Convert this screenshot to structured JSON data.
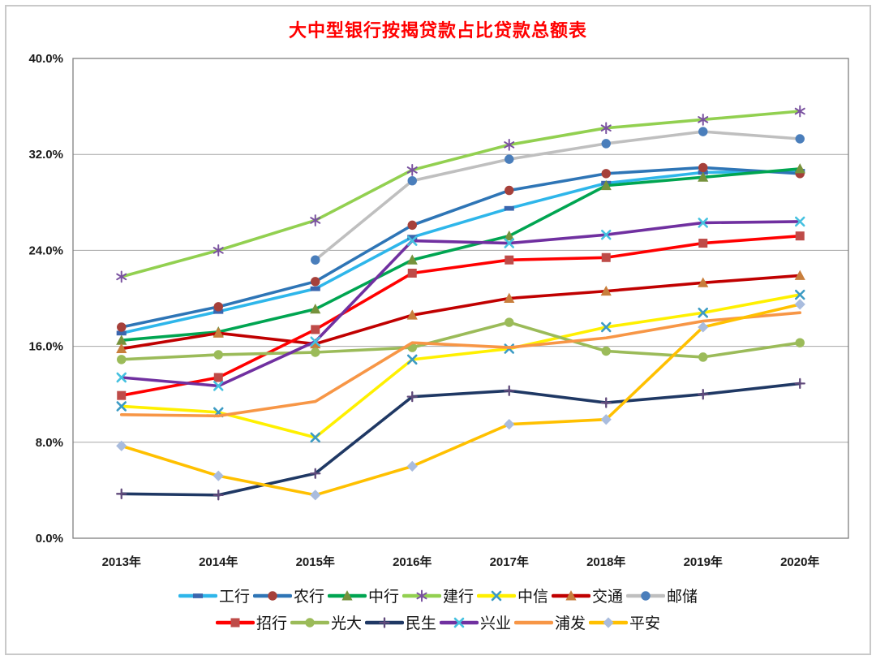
{
  "chart_data": {
    "type": "line",
    "title": "大中型银行按揭贷款占比贷款总额表",
    "title_color": "#ff0000",
    "categories": [
      "2013年",
      "2014年",
      "2015年",
      "2016年",
      "2017年",
      "2018年",
      "2019年",
      "2020年"
    ],
    "y_ticks": [
      "0.0%",
      "8.0%",
      "16.0%",
      "24.0%",
      "32.0%",
      "40.0%"
    ],
    "y_tick_values": [
      0,
      8,
      16,
      24,
      32,
      40
    ],
    "ylim": [
      0,
      40
    ],
    "grid": "horizontal",
    "legend_position": "bottom",
    "legend_rows": [
      [
        0,
        1,
        2,
        3,
        4,
        5,
        6
      ],
      [
        7,
        8,
        9,
        10,
        11,
        12
      ]
    ],
    "grid_color": "#a6a6a6",
    "plot_border_color": "#7f7f7f",
    "series": [
      {
        "name": "工行",
        "line_color": "#2eb6ea",
        "marker": "dash",
        "marker_color": "#3a66ae",
        "values": [
          17.1,
          18.9,
          20.8,
          25.1,
          27.5,
          29.6,
          30.5,
          30.6
        ]
      },
      {
        "name": "农行",
        "line_color": "#2e75b6",
        "marker": "circle",
        "marker_color": "#a6403a",
        "values": [
          17.6,
          19.3,
          21.4,
          26.1,
          29.0,
          30.4,
          30.9,
          30.4
        ]
      },
      {
        "name": "中行",
        "line_color": "#00a551",
        "marker": "triangle",
        "marker_color": "#76923c",
        "values": [
          16.5,
          17.2,
          19.1,
          23.2,
          25.2,
          29.4,
          30.1,
          30.8
        ]
      },
      {
        "name": "建行",
        "line_color": "#92d050",
        "marker": "asterisk",
        "marker_color": "#7a52a0",
        "values": [
          21.8,
          24.0,
          26.5,
          30.7,
          32.8,
          34.2,
          34.9,
          35.6
        ]
      },
      {
        "name": "中信",
        "line_color": "#fff000",
        "marker": "x",
        "marker_color": "#3c9bc4",
        "values": [
          11.0,
          10.5,
          8.4,
          14.9,
          15.8,
          17.6,
          18.8,
          20.3
        ]
      },
      {
        "name": "交通",
        "line_color": "#c00000",
        "marker": "triangle",
        "marker_color": "#c87e3c",
        "values": [
          15.8,
          17.1,
          16.2,
          18.6,
          20.0,
          20.6,
          21.3,
          21.9
        ]
      },
      {
        "name": "邮储",
        "line_color": "#bfbfbf",
        "marker": "circle",
        "marker_color": "#4a7ebb",
        "values": [
          null,
          null,
          23.2,
          29.8,
          31.6,
          32.9,
          33.9,
          33.3
        ]
      },
      {
        "name": "招行",
        "line_color": "#ff0000",
        "marker": "square",
        "marker_color": "#be4b48",
        "values": [
          11.9,
          13.4,
          17.4,
          22.1,
          23.2,
          23.4,
          24.6,
          25.2
        ]
      },
      {
        "name": "光大",
        "line_color": "#9bbb59",
        "marker": "circle",
        "marker_color": "#9bbb59",
        "values": [
          14.9,
          15.3,
          15.5,
          15.9,
          18.0,
          15.6,
          15.1,
          16.3
        ]
      },
      {
        "name": "民生",
        "line_color": "#1f3864",
        "marker": "plus",
        "marker_color": "#604a7b",
        "values": [
          3.7,
          3.6,
          5.4,
          11.8,
          12.3,
          11.3,
          12.0,
          12.9
        ]
      },
      {
        "name": "兴业",
        "line_color": "#7030a0",
        "marker": "x",
        "marker_color": "#45c1e0",
        "values": [
          13.4,
          12.7,
          16.4,
          24.8,
          24.6,
          25.3,
          26.3,
          26.4
        ]
      },
      {
        "name": "浦发",
        "line_color": "#f79646",
        "marker": "none",
        "marker_color": "#f79646",
        "values": [
          10.3,
          10.2,
          11.4,
          16.3,
          15.9,
          16.7,
          18.1,
          18.8
        ]
      },
      {
        "name": "平安",
        "line_color": "#ffc000",
        "marker": "diamond",
        "marker_color": "#a9bcde",
        "values": [
          7.7,
          5.2,
          3.6,
          6.0,
          9.5,
          9.9,
          17.6,
          19.5
        ]
      }
    ]
  }
}
